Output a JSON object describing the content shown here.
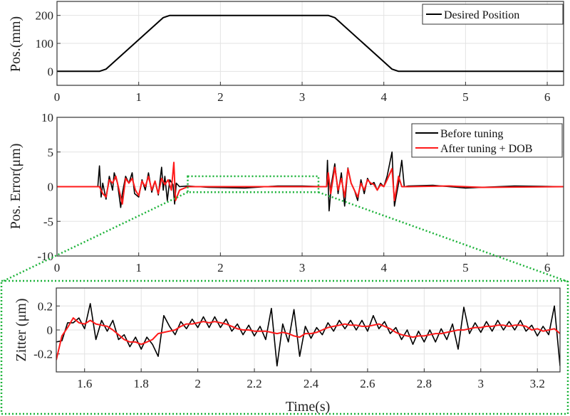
{
  "colors": {
    "black": "#000000",
    "red": "#ff1a1a",
    "zoom_box": "#1db33a",
    "grid": "#e3e3e3"
  },
  "chart_data": [
    {
      "type": "line",
      "ylabel": "Pos.(mm)",
      "xlim": [
        0,
        6.2
      ],
      "ylim": [
        -50,
        250
      ],
      "xticks": [
        "0",
        "1",
        "2",
        "3",
        "4",
        "5",
        "6"
      ],
      "yticks": [
        "0",
        "100",
        "200"
      ],
      "grid": true,
      "legend_position": "top-right",
      "series": [
        {
          "name": "Desired Position",
          "color": "#000000",
          "points": [
            [
              0,
              0
            ],
            [
              0.52,
              0
            ],
            [
              0.6,
              8
            ],
            [
              1.3,
              192
            ],
            [
              1.38,
              200
            ],
            [
              3.32,
              200
            ],
            [
              3.4,
              192
            ],
            [
              4.1,
              8
            ],
            [
              4.18,
              0
            ],
            [
              6.2,
              0
            ]
          ]
        }
      ]
    },
    {
      "type": "line",
      "ylabel": "Pos. Error(μm)",
      "xlim": [
        0,
        6.2
      ],
      "ylim": [
        -10,
        10
      ],
      "xticks": [
        "0",
        "1",
        "2",
        "3",
        "4",
        "5",
        "6"
      ],
      "yticks": [
        "-10",
        "-5",
        "0",
        "5",
        "10"
      ],
      "grid": true,
      "legend_position": "top-right",
      "zoom_region": {
        "x": [
          1.6,
          3.2
        ],
        "y": [
          -0.8,
          1.5
        ]
      },
      "series": [
        {
          "name": "Before tuning",
          "color": "#000000",
          "points": [
            [
              0,
              0
            ],
            [
              0.5,
              0
            ],
            [
              0.52,
              3
            ],
            [
              0.54,
              -1.5
            ],
            [
              0.56,
              0.5
            ],
            [
              0.6,
              -1.8
            ],
            [
              0.64,
              1.5
            ],
            [
              0.68,
              -0.5
            ],
            [
              0.7,
              2
            ],
            [
              0.74,
              0.5
            ],
            [
              0.78,
              -3
            ],
            [
              0.8,
              -1
            ],
            [
              0.84,
              1.5
            ],
            [
              0.88,
              0.5
            ],
            [
              0.92,
              2
            ],
            [
              0.95,
              -1
            ],
            [
              1.0,
              -1.5
            ],
            [
              1.04,
              1
            ],
            [
              1.08,
              -0.5
            ],
            [
              1.12,
              2
            ],
            [
              1.16,
              -0.8
            ],
            [
              1.2,
              0.8
            ],
            [
              1.24,
              -1.2
            ],
            [
              1.28,
              2.8
            ],
            [
              1.3,
              -0.5
            ],
            [
              1.32,
              1.5
            ],
            [
              1.35,
              -2
            ],
            [
              1.38,
              1
            ],
            [
              1.42,
              0.3
            ],
            [
              1.44,
              -2.5
            ],
            [
              1.46,
              0.5
            ],
            [
              1.5,
              0
            ],
            [
              1.6,
              0.1
            ],
            [
              1.85,
              -0.1
            ],
            [
              2.3,
              -0.2
            ],
            [
              2.7,
              0.1
            ],
            [
              3.0,
              0.1
            ],
            [
              3.3,
              0
            ],
            [
              3.31,
              3.8
            ],
            [
              3.33,
              -3.5
            ],
            [
              3.36,
              0.5
            ],
            [
              3.4,
              3.3
            ],
            [
              3.44,
              -1
            ],
            [
              3.48,
              2
            ],
            [
              3.52,
              -2.8
            ],
            [
              3.56,
              2.7
            ],
            [
              3.6,
              0.5
            ],
            [
              3.64,
              -0.5
            ],
            [
              3.68,
              -2
            ],
            [
              3.72,
              1
            ],
            [
              3.76,
              -1
            ],
            [
              3.8,
              1.2
            ],
            [
              3.84,
              0.3
            ],
            [
              3.88,
              0.6
            ],
            [
              3.92,
              -0.5
            ],
            [
              3.96,
              0.5
            ],
            [
              4.0,
              0
            ],
            [
              4.04,
              1.5
            ],
            [
              4.1,
              5
            ],
            [
              4.13,
              -2.8
            ],
            [
              4.18,
              0.5
            ],
            [
              4.22,
              3.8
            ],
            [
              4.25,
              0
            ],
            [
              4.3,
              0.1
            ],
            [
              4.6,
              0.2
            ],
            [
              5.0,
              -0.2
            ],
            [
              5.6,
              0.1
            ],
            [
              6.2,
              0
            ]
          ]
        },
        {
          "name": "After tuning + DOB",
          "color": "#ff1a1a",
          "points": [
            [
              0,
              0
            ],
            [
              0.52,
              0
            ],
            [
              0.56,
              -1
            ],
            [
              0.6,
              -1.5
            ],
            [
              0.64,
              1
            ],
            [
              0.68,
              0.5
            ],
            [
              0.72,
              1.5
            ],
            [
              0.76,
              -0.5
            ],
            [
              0.8,
              -2.5
            ],
            [
              0.84,
              1.2
            ],
            [
              0.88,
              0.5
            ],
            [
              0.92,
              1.2
            ],
            [
              0.96,
              -0.5
            ],
            [
              1.0,
              -1.3
            ],
            [
              1.04,
              0.8
            ],
            [
              1.08,
              0
            ],
            [
              1.12,
              1.5
            ],
            [
              1.16,
              -0.5
            ],
            [
              1.2,
              0.8
            ],
            [
              1.24,
              -1
            ],
            [
              1.28,
              1.2
            ],
            [
              1.32,
              0.3
            ],
            [
              1.36,
              1
            ],
            [
              1.4,
              -0.5
            ],
            [
              1.43,
              3.5
            ],
            [
              1.45,
              -2
            ],
            [
              1.5,
              -0.5
            ],
            [
              1.6,
              0
            ],
            [
              3.3,
              0
            ],
            [
              3.32,
              2
            ],
            [
              3.35,
              -1
            ],
            [
              3.4,
              2.8
            ],
            [
              3.44,
              -0.5
            ],
            [
              3.48,
              1.2
            ],
            [
              3.52,
              -1.5
            ],
            [
              3.56,
              2.6
            ],
            [
              3.6,
              0.5
            ],
            [
              3.64,
              -0.5
            ],
            [
              3.68,
              -1.5
            ],
            [
              3.72,
              0.5
            ],
            [
              3.76,
              -0.5
            ],
            [
              3.8,
              1
            ],
            [
              3.84,
              0.5
            ],
            [
              3.88,
              0.3
            ],
            [
              3.92,
              -0.5
            ],
            [
              3.96,
              0.3
            ],
            [
              4.0,
              0
            ],
            [
              4.04,
              1
            ],
            [
              4.1,
              2.6
            ],
            [
              4.13,
              -2
            ],
            [
              4.18,
              1.5
            ],
            [
              4.22,
              0
            ],
            [
              4.3,
              0
            ],
            [
              4.8,
              0.1
            ],
            [
              5.2,
              -0.1
            ],
            [
              6.2,
              0
            ]
          ]
        }
      ]
    },
    {
      "type": "line",
      "xlabel": "Time(s)",
      "ylabel": "Zitter (μm)",
      "xlim": [
        1.5,
        3.28
      ],
      "ylim": [
        -0.35,
        0.35
      ],
      "xticks": [
        "1.6",
        "1.8",
        "2",
        "2.2",
        "2.4",
        "2.6",
        "2.8",
        "3",
        "3.2"
      ],
      "yticks": [
        "-0.2",
        "0",
        "0.2"
      ],
      "grid": true,
      "x": [
        1.5,
        1.52,
        1.54,
        1.56,
        1.58,
        1.6,
        1.62,
        1.64,
        1.66,
        1.68,
        1.7,
        1.72,
        1.74,
        1.76,
        1.78,
        1.8,
        1.82,
        1.84,
        1.86,
        1.88,
        1.9,
        1.92,
        1.94,
        1.96,
        1.98,
        2.0,
        2.02,
        2.04,
        2.06,
        2.08,
        2.1,
        2.12,
        2.14,
        2.16,
        2.18,
        2.2,
        2.22,
        2.24,
        2.26,
        2.28,
        2.3,
        2.32,
        2.34,
        2.36,
        2.38,
        2.4,
        2.42,
        2.44,
        2.46,
        2.48,
        2.5,
        2.52,
        2.54,
        2.56,
        2.58,
        2.6,
        2.62,
        2.64,
        2.66,
        2.68,
        2.7,
        2.72,
        2.74,
        2.76,
        2.78,
        2.8,
        2.82,
        2.84,
        2.86,
        2.88,
        2.9,
        2.92,
        2.94,
        2.96,
        2.98,
        3.0,
        3.02,
        3.04,
        3.06,
        3.08,
        3.1,
        3.12,
        3.14,
        3.16,
        3.18,
        3.2,
        3.22,
        3.24,
        3.26,
        3.28
      ],
      "series": [
        {
          "color": "#000000",
          "values": [
            -0.1,
            -0.09,
            0.06,
            0.06,
            0.1,
            0.01,
            0.22,
            -0.08,
            0.08,
            -0.01,
            0.08,
            -0.08,
            -0.04,
            -0.14,
            -0.06,
            -0.16,
            -0.06,
            -0.12,
            -0.22,
            0.12,
            0.03,
            -0.04,
            0.07,
            0.01,
            0.09,
            0.02,
            0.11,
            0.02,
            0.11,
            0.02,
            0.09,
            -0.01,
            0.05,
            -0.04,
            0.04,
            -0.05,
            0.03,
            -0.08,
            0.18,
            -0.3,
            0.05,
            -0.1,
            0.17,
            -0.22,
            0.03,
            -0.07,
            0.02,
            -0.04,
            0.06,
            -0.01,
            0.08,
            0.01,
            0.08,
            0.0,
            0.08,
            -0.01,
            0.12,
            0.01,
            0.07,
            -0.03,
            0.02,
            -0.08,
            0.0,
            -0.12,
            -0.01,
            -0.1,
            0.0,
            -0.1,
            0.01,
            -0.08,
            0.05,
            -0.16,
            0.19,
            -0.03,
            0.06,
            -0.02,
            0.07,
            -0.01,
            0.08,
            0.0,
            0.07,
            0.0,
            0.08,
            -0.01,
            0.04,
            -0.05,
            0.03,
            -0.04,
            0.2,
            -0.3
          ]
        },
        {
          "color": "#ff1a1a",
          "values": [
            -0.25,
            -0.05,
            0.02,
            0.1,
            0.06,
            0.05,
            0.08,
            0.05,
            0.04,
            0.03,
            0.0,
            -0.04,
            -0.08,
            -0.1,
            -0.1,
            -0.12,
            -0.1,
            -0.08,
            -0.03,
            -0.02,
            -0.01,
            0.0,
            0.03,
            0.05,
            0.05,
            0.06,
            0.07,
            0.06,
            0.07,
            0.06,
            0.05,
            0.03,
            0.01,
            0.0,
            0.0,
            -0.01,
            -0.01,
            -0.01,
            -0.02,
            -0.03,
            -0.02,
            -0.03,
            -0.05,
            -0.06,
            -0.03,
            -0.03,
            -0.02,
            0.0,
            0.02,
            0.03,
            0.04,
            0.05,
            0.04,
            0.04,
            0.03,
            0.03,
            0.04,
            0.05,
            0.03,
            0.01,
            -0.02,
            -0.04,
            -0.05,
            -0.06,
            -0.05,
            -0.05,
            -0.04,
            -0.03,
            -0.03,
            -0.02,
            -0.01,
            0.0,
            0.0,
            0.01,
            0.02,
            0.02,
            0.03,
            0.03,
            0.04,
            0.04,
            0.03,
            0.04,
            0.04,
            0.03,
            0.0,
            0.01,
            -0.01,
            0.0,
            0.01,
            -0.03
          ]
        }
      ]
    }
  ]
}
